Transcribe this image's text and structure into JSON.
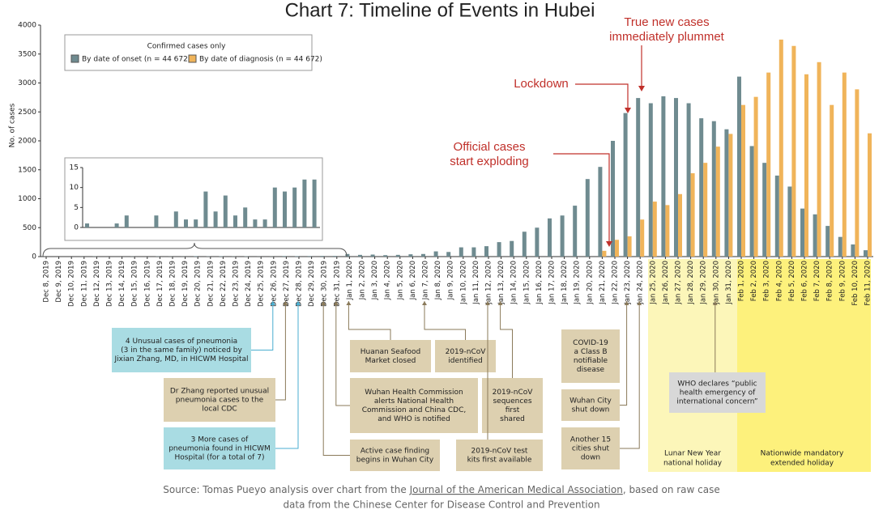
{
  "chart_data": {
    "type": "bar",
    "title": "Chart 7: Timeline of Events in Hubei",
    "ylabel": "No. of cases",
    "legend_title": "Confirmed cases only",
    "categories": [
      "Dec 8, 2019",
      "Dec 9, 2019",
      "Dec 10, 2019",
      "Dec 11, 2019",
      "Dec 12, 2019",
      "Dec 13, 2019",
      "Dec 14, 2019",
      "Dec 15, 2019",
      "Dec 16, 2019",
      "Dec 17, 2019",
      "Dec 18, 2019",
      "Dec 19, 2019",
      "Dec 20, 2019",
      "Dec 21, 2019",
      "Dec 22, 2019",
      "Dec 23, 2019",
      "Dec 24, 2019",
      "Dec 25, 2019",
      "Dec 26, 2019",
      "Dec 27, 2019",
      "Dec 28, 2019",
      "Dec 29, 2019",
      "Dec 30, 2019",
      "Dec 31, 2019",
      "Jan 1, 2020",
      "Jan 2, 2020",
      "Jan 3, 2020",
      "Jan 4, 2020",
      "Jan 5, 2020",
      "Jan 6, 2020",
      "Jan 7, 2020",
      "Jan 8, 2020",
      "Jan 9, 2020",
      "Jan 10, 2020",
      "Jan 11, 2020",
      "Jan 12, 2020",
      "Jan 13, 2020",
      "Jan 14, 2020",
      "Jan 15, 2020",
      "Jan 16, 2020",
      "Jan 17, 2020",
      "Jan 18, 2020",
      "Jan 19, 2020",
      "Jan 20, 2020",
      "Jan 21, 2020",
      "Jan 22, 2020",
      "Jan 23, 2020",
      "Jan 24, 2020",
      "Jan 25, 2020",
      "Jan 26, 2020",
      "Jan 27, 2020",
      "Jan 28, 2020",
      "Jan 29, 2020",
      "Jan 30, 2020",
      "Jan 31, 2020",
      "Feb 1, 2020",
      "Feb 2, 2020",
      "Feb 3, 2020",
      "Feb 4, 2020",
      "Feb 5, 2020",
      "Feb 6, 2020",
      "Feb 7, 2020",
      "Feb 8, 2020",
      "Feb 9, 2020",
      "Feb 10, 2020",
      "Feb 11, 2020"
    ],
    "series": [
      {
        "name": "By date of onset (n = 44 672)",
        "color": "#6f8b90",
        "values": [
          1,
          0,
          0,
          1,
          3,
          0,
          0,
          3,
          0,
          4,
          2,
          2,
          9,
          4,
          8,
          3,
          5,
          2,
          2,
          10,
          9,
          10,
          12,
          12,
          45,
          30,
          35,
          25,
          30,
          40,
          45,
          90,
          80,
          160,
          160,
          180,
          250,
          270,
          430,
          500,
          660,
          710,
          880,
          1340,
          1550,
          2000,
          2480,
          2740,
          2650,
          2770,
          2740,
          2650,
          2390,
          2340,
          2200,
          3110,
          1910,
          1620,
          1400,
          1210,
          830,
          730,
          530,
          340,
          210,
          110
        ]
      },
      {
        "name": "By date of diagnosis (n = 44 672)",
        "color": "#f0b45a",
        "values": [
          0,
          0,
          0,
          0,
          0,
          0,
          0,
          0,
          0,
          0,
          0,
          0,
          0,
          0,
          0,
          0,
          0,
          0,
          0,
          0,
          0,
          0,
          0,
          0,
          0,
          0,
          0,
          0,
          0,
          0,
          0,
          0,
          0,
          0,
          0,
          0,
          0,
          0,
          0,
          0,
          0,
          0,
          0,
          0,
          100,
          290,
          350,
          640,
          950,
          890,
          1080,
          1440,
          1620,
          1900,
          2120,
          2620,
          2760,
          3180,
          3750,
          3640,
          3150,
          3360,
          2620,
          3180,
          2890,
          2130
        ]
      }
    ],
    "ylim": [
      0,
      4000
    ],
    "yticks": [
      0,
      500,
      1000,
      1500,
      2000,
      2500,
      3000,
      3500,
      4000
    ],
    "grid": false,
    "inset": {
      "ylim": [
        0,
        15
      ],
      "yticks": [
        0,
        5,
        10,
        15
      ]
    },
    "callouts": [
      {
        "lines": [
          "Lockdown"
        ]
      },
      {
        "lines": [
          "Official cases",
          "start exploding"
        ]
      },
      {
        "lines": [
          "True new cases",
          "immediately plummet"
        ]
      }
    ],
    "events": [
      {
        "lines": [
          "4 Unusual cases of pneumonia",
          "(3 in the same family) noticed by",
          "Jixian Zhang, MD, in HICWM Hospital"
        ]
      },
      {
        "lines": [
          "Dr Zhang reported unusual",
          "pneumonia cases to the",
          "local CDC"
        ]
      },
      {
        "lines": [
          "3 More cases of",
          "pneumonia found in HICWM",
          "Hospital (for a total of 7)"
        ]
      },
      {
        "lines": [
          "Huanan Seafood",
          "Market closed"
        ]
      },
      {
        "lines": [
          "2019-nCoV",
          "identified"
        ]
      },
      {
        "lines": [
          "Wuhan Health Commission",
          "alerts National Health",
          "Commission and China CDC,",
          "and WHO is notified"
        ]
      },
      {
        "lines": [
          "2019-nCoV",
          "sequences",
          "first",
          "shared"
        ]
      },
      {
        "lines": [
          "Active case finding",
          "begins in Wuhan City"
        ]
      },
      {
        "lines": [
          "2019-nCoV test",
          "kits first available"
        ]
      },
      {
        "lines": [
          "COVID-19",
          "a Class B",
          "notifiable",
          "disease"
        ]
      },
      {
        "lines": [
          "Wuhan City",
          "shut down"
        ]
      },
      {
        "lines": [
          "Another 15",
          "cities shut",
          "down"
        ]
      },
      {
        "lines": [
          "WHO declares “public",
          "health emergency of",
          "international concern”"
        ]
      }
    ],
    "periods": [
      {
        "lines": [
          "Lunar New Year",
          "national holiday"
        ]
      },
      {
        "lines": [
          "Nationwide mandatory",
          "extended holiday"
        ]
      }
    ],
    "source": [
      "Source: Tomas Pueyo analysis over chart from the ",
      "Journal of the American Medical Association",
      ", based on raw case",
      "data from the Chinese Center for Disease Control and Prevention"
    ]
  }
}
